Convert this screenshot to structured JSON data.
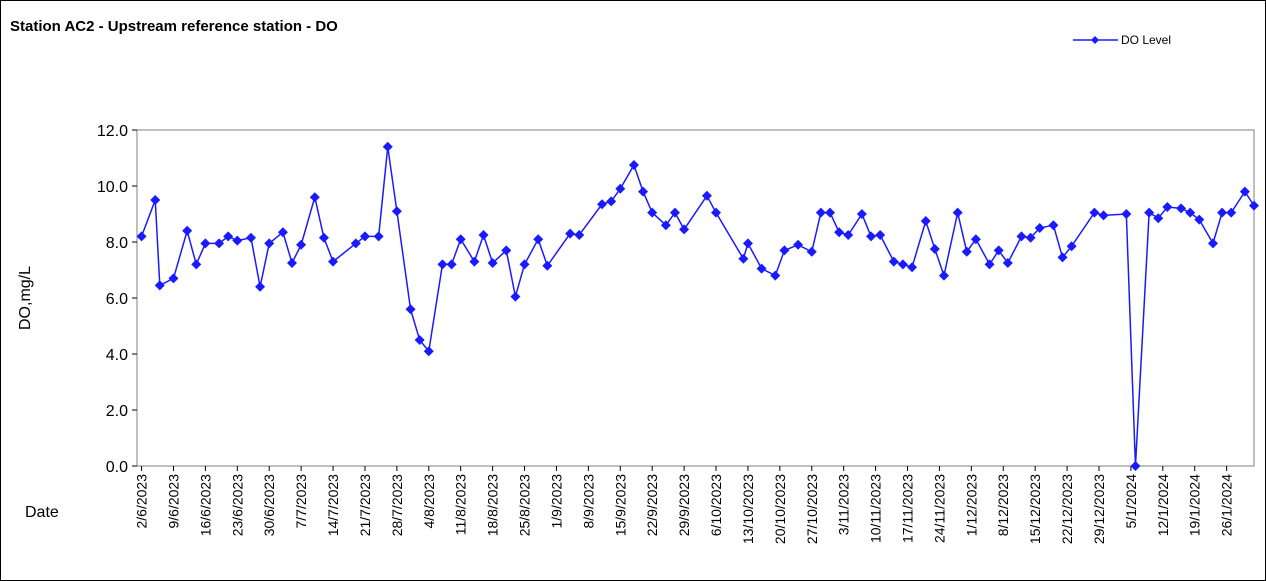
{
  "chart_data": {
    "type": "line",
    "title": "Station AC2 - Upstream reference station - DO",
    "xlabel": "Date",
    "ylabel": "DO,mg/L",
    "x": [
      "2/6/2023",
      "5/6/2023",
      "6/6/2023",
      "9/6/2023",
      "12/6/2023",
      "14/6/2023",
      "16/6/2023",
      "19/6/2023",
      "21/6/2023",
      "23/6/2023",
      "26/6/2023",
      "28/6/2023",
      "30/6/2023",
      "3/7/2023",
      "5/7/2023",
      "7/7/2023",
      "10/7/2023",
      "12/7/2023",
      "14/7/2023",
      "19/7/2023",
      "21/7/2023",
      "24/7/2023",
      "26/7/2023",
      "28/7/2023",
      "31/7/2023",
      "2/8/2023",
      "4/8/2023",
      "7/8/2023",
      "9/8/2023",
      "11/8/2023",
      "14/8/2023",
      "16/8/2023",
      "18/8/2023",
      "21/8/2023",
      "23/8/2023",
      "25/8/2023",
      "28/8/2023",
      "30/8/2023",
      "4/9/2023",
      "6/9/2023",
      "11/9/2023",
      "13/9/2023",
      "15/9/2023",
      "18/9/2023",
      "20/9/2023",
      "22/9/2023",
      "25/9/2023",
      "27/9/2023",
      "29/9/2023",
      "4/10/2023",
      "6/10/2023",
      "12/10/2023",
      "13/10/2023",
      "16/10/2023",
      "19/10/2023",
      "21/10/2023",
      "24/10/2023",
      "27/10/2023",
      "29/10/2023",
      "31/10/2023",
      "2/11/2023",
      "4/11/2023",
      "7/11/2023",
      "9/11/2023",
      "11/11/2023",
      "14/11/2023",
      "16/11/2023",
      "18/11/2023",
      "21/11/2023",
      "23/11/2023",
      "25/11/2023",
      "28/11/2023",
      "30/11/2023",
      "2/12/2023",
      "5/12/2023",
      "7/12/2023",
      "9/12/2023",
      "12/12/2023",
      "14/12/2023",
      "16/12/2023",
      "19/12/2023",
      "21/12/2023",
      "23/12/2023",
      "28/12/2023",
      "30/12/2023",
      "4/1/2024",
      "6/1/2024",
      "9/1/2024",
      "11/1/2024",
      "13/1/2024",
      "16/1/2024",
      "18/1/2024",
      "20/1/2024",
      "23/1/2024",
      "25/1/2024",
      "27/1/2024",
      "30/1/2024",
      "1/2/2024"
    ],
    "series": [
      {
        "name": "DO Level",
        "color": "#1a1aff",
        "values": [
          8.2,
          9.5,
          6.45,
          6.7,
          8.4,
          7.2,
          7.95,
          7.95,
          8.2,
          8.05,
          8.15,
          6.4,
          7.95,
          8.35,
          7.25,
          7.9,
          9.6,
          8.15,
          7.3,
          7.95,
          8.2,
          8.2,
          11.4,
          9.1,
          5.6,
          4.5,
          4.1,
          7.2,
          7.2,
          8.1,
          7.3,
          8.25,
          7.25,
          7.7,
          6.05,
          7.2,
          8.1,
          7.15,
          8.3,
          8.25,
          9.35,
          9.45,
          9.9,
          10.75,
          9.8,
          9.05,
          8.6,
          9.05,
          8.45,
          9.65,
          9.05,
          7.4,
          7.95,
          7.05,
          6.8,
          7.7,
          7.9,
          7.65,
          9.05,
          9.05,
          8.35,
          8.25,
          9.0,
          8.2,
          8.25,
          7.3,
          7.2,
          7.1,
          8.75,
          7.75,
          6.8,
          9.05,
          7.65,
          8.1,
          7.2,
          7.7,
          7.25,
          8.2,
          8.15,
          8.5,
          8.6,
          7.45,
          7.85,
          9.05,
          8.95,
          9.0,
          0,
          9.05,
          8.85,
          9.25,
          9.2,
          9.05,
          8.8,
          7.95,
          9.05,
          9.05,
          9.8,
          9.3
        ]
      }
    ],
    "xlim": [
      "1/6/2023",
      "1/2/2024"
    ],
    "xticks": [
      "2/6/2023",
      "9/6/2023",
      "16/6/2023",
      "23/6/2023",
      "30/6/2023",
      "7/7/2023",
      "14/7/2023",
      "21/7/2023",
      "28/7/2023",
      "4/8/2023",
      "11/8/2023",
      "18/8/2023",
      "25/8/2023",
      "1/9/2023",
      "8/9/2023",
      "15/9/2023",
      "22/9/2023",
      "29/9/2023",
      "6/10/2023",
      "13/10/2023",
      "20/10/2023",
      "27/10/2023",
      "3/11/2023",
      "10/11/2023",
      "17/11/2023",
      "24/11/2023",
      "1/12/2023",
      "8/12/2023",
      "15/12/2023",
      "22/12/2023",
      "29/12/2023",
      "5/1/2024",
      "12/1/2024",
      "19/1/2024",
      "26/1/2024"
    ],
    "ylim": [
      0,
      12
    ],
    "yticks": [
      {
        "value": 0,
        "label": "0.0"
      },
      {
        "value": 2,
        "label": "2.0"
      },
      {
        "value": 4,
        "label": "4.0"
      },
      {
        "value": 6,
        "label": "6.0"
      },
      {
        "value": 8,
        "label": "8.0"
      },
      {
        "value": 10,
        "label": "10.0"
      },
      {
        "value": 12,
        "label": "12.0"
      }
    ],
    "legend": "top-right",
    "grid": false
  }
}
